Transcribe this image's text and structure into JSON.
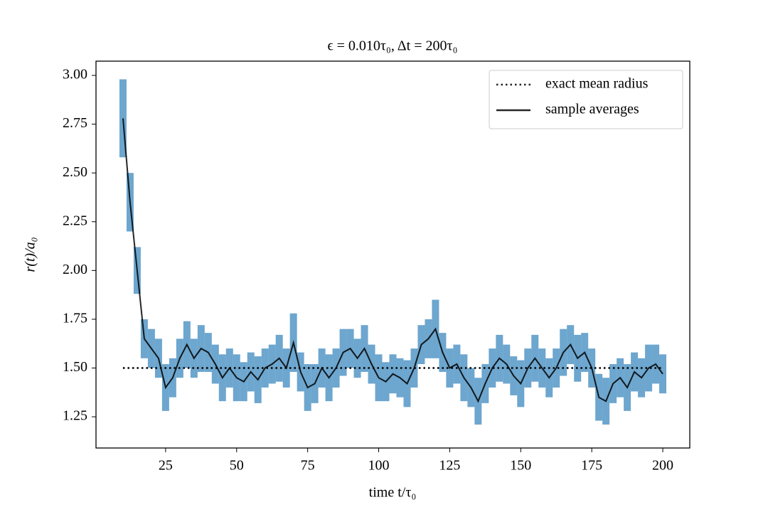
{
  "chart_data": {
    "type": "line",
    "title": "ϵ = 0.010τ₀,  Δt = 200τ₀",
    "xlabel": "time t/τ₀",
    "ylabel": "r(t)/a₀",
    "x": [
      10,
      12.5,
      15,
      17.5,
      20,
      22.5,
      25,
      27.5,
      30,
      32.5,
      35,
      37.5,
      40,
      42.5,
      45,
      47.5,
      50,
      52.5,
      55,
      57.5,
      60,
      62.5,
      65,
      67.5,
      70,
      72.5,
      75,
      77.5,
      80,
      82.5,
      85,
      87.5,
      90,
      92.5,
      95,
      97.5,
      100,
      102.5,
      105,
      107.5,
      110,
      112.5,
      115,
      117.5,
      120,
      122.5,
      125,
      127.5,
      130,
      132.5,
      135,
      137.5,
      140,
      142.5,
      145,
      147.5,
      150,
      152.5,
      155,
      157.5,
      160,
      162.5,
      165,
      167.5,
      170,
      172.5,
      175,
      177.5,
      180,
      182.5,
      185,
      187.5,
      190,
      192.5,
      195,
      197.5,
      200
    ],
    "series": [
      {
        "name": "sample averages",
        "color": "#000000",
        "values": [
          2.78,
          2.35,
          2.0,
          1.65,
          1.6,
          1.55,
          1.4,
          1.45,
          1.55,
          1.62,
          1.55,
          1.6,
          1.58,
          1.52,
          1.45,
          1.5,
          1.45,
          1.43,
          1.48,
          1.44,
          1.5,
          1.52,
          1.55,
          1.5,
          1.63,
          1.48,
          1.4,
          1.42,
          1.5,
          1.45,
          1.5,
          1.58,
          1.6,
          1.55,
          1.6,
          1.52,
          1.45,
          1.43,
          1.47,
          1.45,
          1.42,
          1.5,
          1.62,
          1.65,
          1.7,
          1.58,
          1.5,
          1.52,
          1.45,
          1.4,
          1.33,
          1.42,
          1.5,
          1.55,
          1.52,
          1.46,
          1.42,
          1.5,
          1.55,
          1.5,
          1.45,
          1.5,
          1.58,
          1.62,
          1.55,
          1.58,
          1.5,
          1.35,
          1.33,
          1.42,
          1.45,
          1.4,
          1.48,
          1.45,
          1.5,
          1.52,
          1.47
        ],
        "errors": [
          0.2,
          0.15,
          0.12,
          0.1,
          0.1,
          0.1,
          0.12,
          0.1,
          0.1,
          0.12,
          0.1,
          0.12,
          0.1,
          0.1,
          0.12,
          0.1,
          0.12,
          0.1,
          0.1,
          0.12,
          0.1,
          0.1,
          0.12,
          0.1,
          0.15,
          0.1,
          0.12,
          0.1,
          0.1,
          0.12,
          0.1,
          0.12,
          0.1,
          0.1,
          0.12,
          0.1,
          0.12,
          0.1,
          0.1,
          0.1,
          0.12,
          0.1,
          0.1,
          0.1,
          0.15,
          0.1,
          0.1,
          0.1,
          0.12,
          0.1,
          0.12,
          0.1,
          0.1,
          0.12,
          0.1,
          0.1,
          0.12,
          0.1,
          0.12,
          0.1,
          0.1,
          0.1,
          0.12,
          0.1,
          0.12,
          0.1,
          0.1,
          0.12,
          0.12,
          0.1,
          0.1,
          0.12,
          0.1,
          0.1,
          0.12,
          0.1,
          0.1
        ],
        "error_color": "#1f77b4"
      },
      {
        "name": "exact mean radius",
        "color": "#000000",
        "style": "dotted",
        "value": 1.5
      }
    ],
    "xlim": [
      0.5,
      209.5
    ],
    "ylim": [
      1.09,
      3.073
    ],
    "xticks": [
      25,
      50,
      75,
      100,
      125,
      150,
      175,
      200
    ],
    "yticks": [
      {
        "value": 1.25,
        "label": "1.25"
      },
      {
        "value": 1.5,
        "label": "1.50"
      },
      {
        "value": 1.75,
        "label": "1.75"
      },
      {
        "value": 2.0,
        "label": "2.00"
      },
      {
        "value": 2.25,
        "label": "2.25"
      },
      {
        "value": 2.5,
        "label": "2.50"
      },
      {
        "value": 2.75,
        "label": "2.75"
      },
      {
        "value": 3.0,
        "label": "3.00"
      }
    ],
    "grid": false,
    "legend": "upper right"
  }
}
